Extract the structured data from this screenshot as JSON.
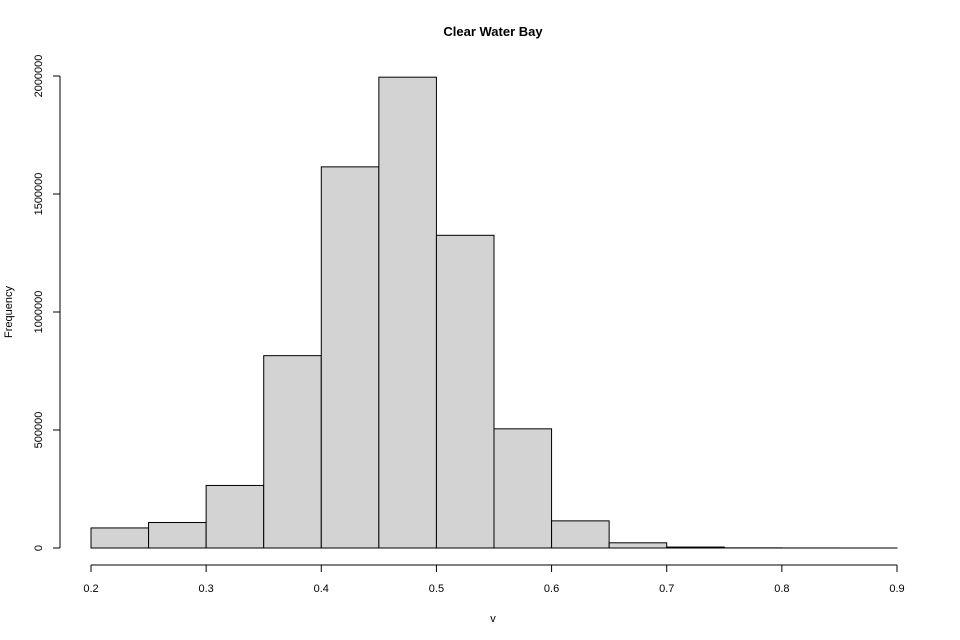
{
  "chart_data": {
    "type": "bar",
    "title": "Clear Water Bay",
    "xlabel": "v",
    "ylabel": "Frequency",
    "x_ticks": [
      "0.2",
      "0.3",
      "0.4",
      "0.5",
      "0.6",
      "0.7",
      "0.8",
      "0.9"
    ],
    "y_ticks": [
      "0",
      "500000",
      "1000000",
      "1500000",
      "2000000"
    ],
    "xlim": [
      0.2,
      0.9
    ],
    "ylim": [
      0,
      2000000
    ],
    "bins": [
      {
        "start": 0.2,
        "end": 0.25,
        "value": 85000
      },
      {
        "start": 0.25,
        "end": 0.3,
        "value": 108000
      },
      {
        "start": 0.3,
        "end": 0.35,
        "value": 265000
      },
      {
        "start": 0.35,
        "end": 0.4,
        "value": 815000
      },
      {
        "start": 0.4,
        "end": 0.45,
        "value": 1615000
      },
      {
        "start": 0.45,
        "end": 0.5,
        "value": 1995000
      },
      {
        "start": 0.5,
        "end": 0.55,
        "value": 1325000
      },
      {
        "start": 0.55,
        "end": 0.6,
        "value": 505000
      },
      {
        "start": 0.6,
        "end": 0.65,
        "value": 115000
      },
      {
        "start": 0.65,
        "end": 0.7,
        "value": 22000
      },
      {
        "start": 0.7,
        "end": 0.75,
        "value": 4000
      },
      {
        "start": 0.75,
        "end": 0.8,
        "value": 600
      },
      {
        "start": 0.8,
        "end": 0.85,
        "value": 150
      },
      {
        "start": 0.85,
        "end": 0.9,
        "value": 50
      }
    ],
    "grid": false,
    "legend": "none"
  }
}
